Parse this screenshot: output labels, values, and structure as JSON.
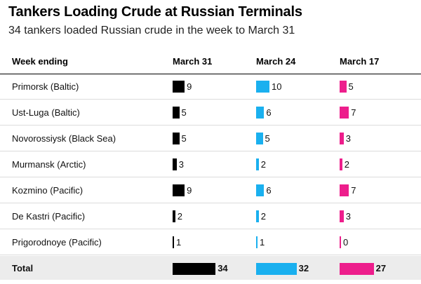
{
  "title": "Tankers Loading Crude at Russian Terminals",
  "subtitle": "34 tankers loaded Russian crude in the week to March 31",
  "colors": {
    "march31": "#000000",
    "march24": "#1ab0ef",
    "march17": "#ed1e8c"
  },
  "chart_data": {
    "type": "table",
    "row_header": "Week ending",
    "columns": [
      "March 31",
      "March 24",
      "March 17"
    ],
    "rows": [
      {
        "label": "Primorsk (Baltic)",
        "values": [
          9,
          10,
          5
        ]
      },
      {
        "label": "Ust-Luga (Baltic)",
        "values": [
          5,
          6,
          7
        ]
      },
      {
        "label": "Novorossiysk (Black Sea)",
        "values": [
          5,
          5,
          3
        ]
      },
      {
        "label": "Murmansk (Arctic)",
        "values": [
          3,
          2,
          2
        ]
      },
      {
        "label": "Kozmino (Pacific)",
        "values": [
          9,
          6,
          7
        ]
      },
      {
        "label": "De Kastri (Pacific)",
        "values": [
          2,
          2,
          3
        ]
      },
      {
        "label": "Prigorodnoye (Pacific)",
        "values": [
          1,
          1,
          0
        ]
      }
    ],
    "total": {
      "label": "Total",
      "values": [
        34,
        32,
        27
      ]
    }
  }
}
